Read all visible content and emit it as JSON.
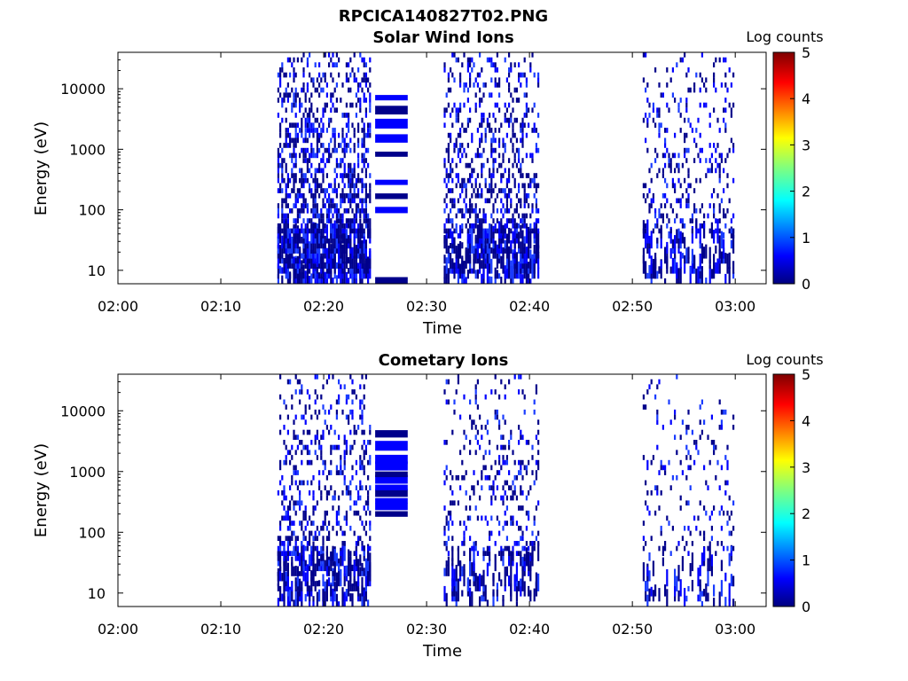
{
  "figure": {
    "title": "RPCICA140827T02.PNG"
  },
  "chart_data": [
    {
      "type": "heatmap",
      "title": "Solar Wind Ions",
      "xlabel": "Time",
      "ylabel": "Energy (eV)",
      "x_ticks": [
        "02:00",
        "02:10",
        "02:20",
        "02:30",
        "02:40",
        "02:50",
        "03:00"
      ],
      "y_ticks": [
        "10",
        "100",
        "1000",
        "10000"
      ],
      "y_scale": "log",
      "ylim": [
        6,
        40000
      ],
      "xlim": [
        "02:00",
        "03:03"
      ],
      "colorbar": {
        "label": "Log counts",
        "ticks": [
          "0",
          "1",
          "2",
          "3",
          "4",
          "5"
        ],
        "range": [
          0,
          5
        ]
      },
      "data_blocks": [
        {
          "start": "02:15:30",
          "end": "02:24:40",
          "emin": 6,
          "emax": 40000,
          "density": 0.55
        },
        {
          "start": "02:25:00",
          "end": "02:28:10",
          "emin": 6,
          "emax": 11000,
          "density": 0.0,
          "band_rows": true
        },
        {
          "start": "02:31:40",
          "end": "02:41:00",
          "emin": 6,
          "emax": 40000,
          "density": 0.38
        },
        {
          "start": "02:51:00",
          "end": "02:59:50",
          "emin": 6,
          "emax": 40000,
          "density": 0.22
        }
      ],
      "colors": {
        "dominant": "#00008b",
        "secondary": "#0000ff",
        "sparse": "#1a3cff"
      }
    },
    {
      "type": "heatmap",
      "title": "Cometary Ions",
      "xlabel": "Time",
      "ylabel": "Energy (eV)",
      "x_ticks": [
        "02:00",
        "02:10",
        "02:20",
        "02:30",
        "02:40",
        "02:50",
        "03:00"
      ],
      "y_ticks": [
        "10",
        "100",
        "1000",
        "10000"
      ],
      "y_scale": "log",
      "ylim": [
        6,
        40000
      ],
      "xlim": [
        "02:00",
        "03:03"
      ],
      "colorbar": {
        "label": "Log counts",
        "ticks": [
          "0",
          "1",
          "2",
          "3",
          "4",
          "5"
        ],
        "range": [
          0,
          5
        ]
      },
      "data_blocks": [
        {
          "start": "02:15:30",
          "end": "02:24:40",
          "emin": 6,
          "emax": 40000,
          "density": 0.32
        },
        {
          "start": "02:25:00",
          "end": "02:28:10",
          "emin": 180,
          "emax": 6000,
          "density": 0.0,
          "band_rows": true
        },
        {
          "start": "02:31:40",
          "end": "02:41:00",
          "emin": 6,
          "emax": 40000,
          "density": 0.2
        },
        {
          "start": "02:51:00",
          "end": "02:59:50",
          "emin": 6,
          "emax": 40000,
          "density": 0.12
        }
      ],
      "colors": {
        "dominant": "#00008b",
        "secondary": "#0000ff",
        "sparse": "#1a3cff"
      }
    }
  ]
}
